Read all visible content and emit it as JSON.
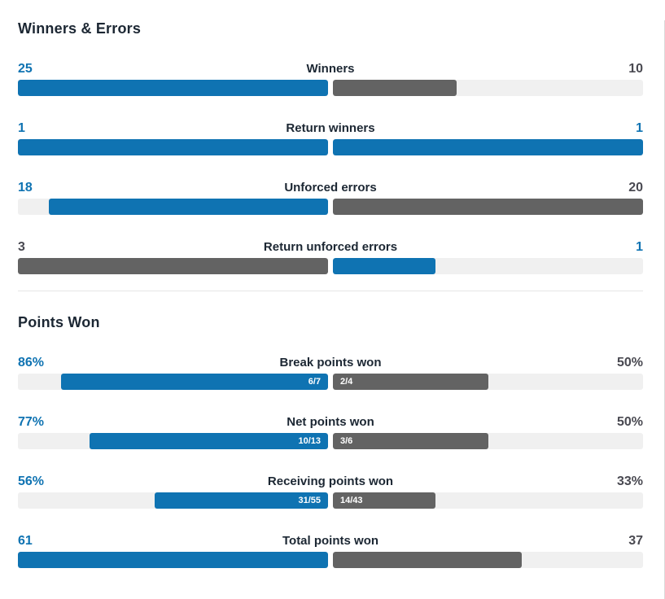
{
  "colors": {
    "blue": "#0f73b2",
    "bar_gray": "#636363",
    "track_gray": "#f0f0f0",
    "heading_text": "#1c2733",
    "value_gray_text": "#494951",
    "divider": "#e6e6e6",
    "inner_label_text": "#ffffff"
  },
  "sections": [
    {
      "title": "Winners & Errors",
      "rows": [
        {
          "label": "Winners",
          "left": {
            "value": "25",
            "pct": 100,
            "bar": "#0f73b2",
            "text": "#0f73b2",
            "inner": ""
          },
          "right": {
            "value": "10",
            "pct": 40,
            "bar": "#636363",
            "text": "#494951",
            "inner": ""
          }
        },
        {
          "label": "Return winners",
          "left": {
            "value": "1",
            "pct": 100,
            "bar": "#0f73b2",
            "text": "#0f73b2",
            "inner": ""
          },
          "right": {
            "value": "1",
            "pct": 100,
            "bar": "#0f73b2",
            "text": "#0f73b2",
            "inner": ""
          }
        },
        {
          "label": "Unforced errors",
          "left": {
            "value": "18",
            "pct": 90,
            "bar": "#0f73b2",
            "text": "#0f73b2",
            "inner": ""
          },
          "right": {
            "value": "20",
            "pct": 100,
            "bar": "#636363",
            "text": "#494951",
            "inner": ""
          }
        },
        {
          "label": "Return unforced errors",
          "left": {
            "value": "3",
            "pct": 100,
            "bar": "#636363",
            "text": "#494951",
            "inner": ""
          },
          "right": {
            "value": "1",
            "pct": 33,
            "bar": "#0f73b2",
            "text": "#0f73b2",
            "inner": ""
          }
        }
      ]
    },
    {
      "title": "Points Won",
      "rows": [
        {
          "label": "Break points won",
          "left": {
            "value": "86%",
            "pct": 86,
            "bar": "#0f73b2",
            "text": "#0f73b2",
            "inner": "6/7"
          },
          "right": {
            "value": "50%",
            "pct": 50,
            "bar": "#636363",
            "text": "#494951",
            "inner": "2/4"
          }
        },
        {
          "label": "Net points won",
          "left": {
            "value": "77%",
            "pct": 77,
            "bar": "#0f73b2",
            "text": "#0f73b2",
            "inner": "10/13"
          },
          "right": {
            "value": "50%",
            "pct": 50,
            "bar": "#636363",
            "text": "#494951",
            "inner": "3/6"
          }
        },
        {
          "label": "Receiving points won",
          "left": {
            "value": "56%",
            "pct": 56,
            "bar": "#0f73b2",
            "text": "#0f73b2",
            "inner": "31/55"
          },
          "right": {
            "value": "33%",
            "pct": 33,
            "bar": "#636363",
            "text": "#494951",
            "inner": "14/43"
          }
        },
        {
          "label": "Total points won",
          "left": {
            "value": "61",
            "pct": 100,
            "bar": "#0f73b2",
            "text": "#0f73b2",
            "inner": ""
          },
          "right": {
            "value": "37",
            "pct": 61,
            "bar": "#636363",
            "text": "#494951",
            "inner": ""
          }
        }
      ]
    }
  ],
  "chart_data": [
    {
      "type": "bar",
      "title": "Winners & Errors",
      "orientation": "horizontal-paired-from-center",
      "categories": [
        "Winners",
        "Return winners",
        "Unforced errors",
        "Return unforced errors"
      ],
      "series": [
        {
          "name": "player-left",
          "values": [
            25,
            1,
            18,
            3
          ],
          "highlighted": [
            true,
            true,
            true,
            false
          ]
        },
        {
          "name": "player-right",
          "values": [
            10,
            1,
            20,
            1
          ],
          "highlighted": [
            false,
            true,
            false,
            true
          ]
        }
      ],
      "legend": false,
      "grid": false
    },
    {
      "type": "bar",
      "title": "Points Won",
      "orientation": "horizontal-paired-from-center",
      "categories": [
        "Break points won",
        "Net points won",
        "Receiving points won",
        "Total points won"
      ],
      "series": [
        {
          "name": "player-left",
          "values": [
            86,
            77,
            56,
            61
          ],
          "value_labels": [
            "86%",
            "77%",
            "56%",
            "61"
          ],
          "fractions": [
            "6/7",
            "10/13",
            "31/55",
            null
          ],
          "highlighted": [
            true,
            true,
            true,
            true
          ]
        },
        {
          "name": "player-right",
          "values": [
            50,
            50,
            33,
            37
          ],
          "value_labels": [
            "50%",
            "50%",
            "33%",
            "37"
          ],
          "fractions": [
            "2/4",
            "3/6",
            "14/43",
            null
          ],
          "highlighted": [
            false,
            false,
            false,
            false
          ]
        }
      ],
      "legend": false,
      "grid": false
    }
  ]
}
